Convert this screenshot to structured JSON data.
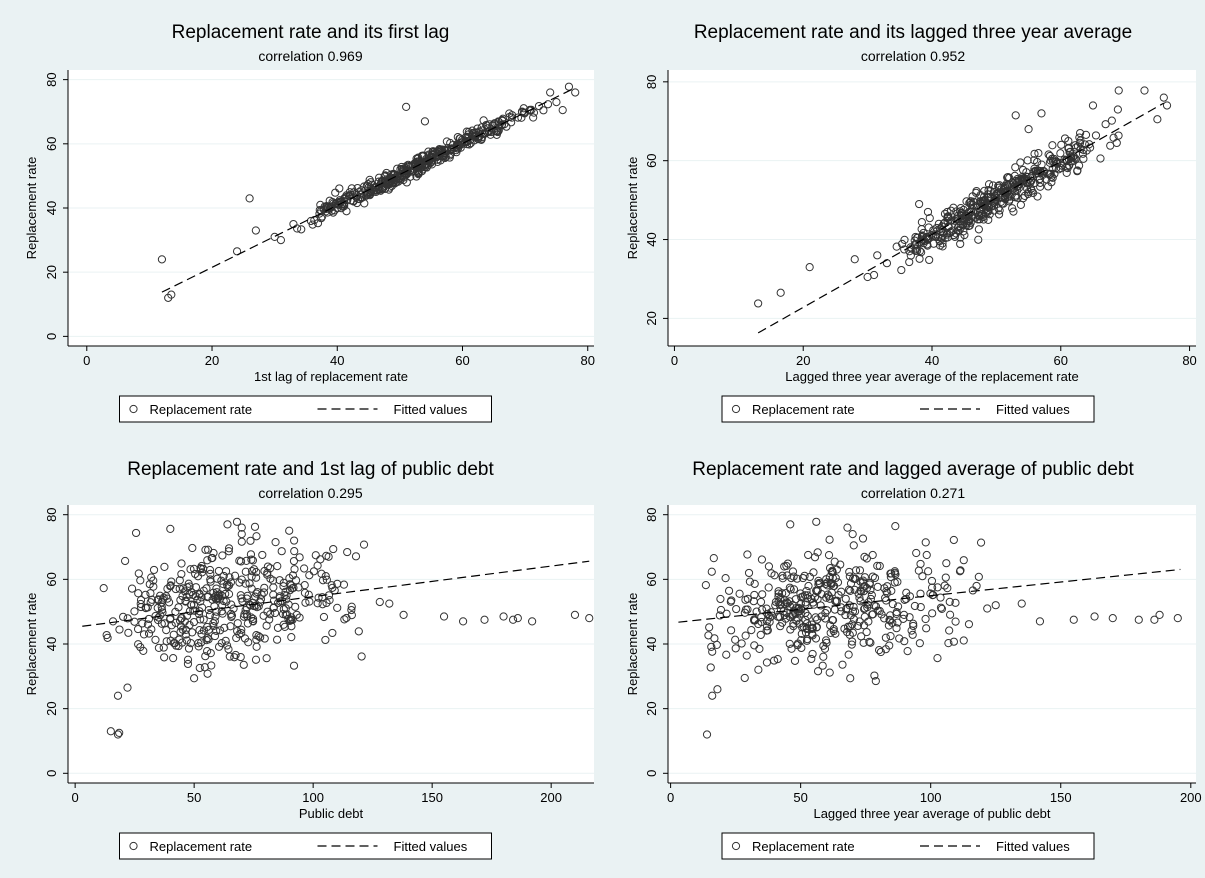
{
  "chart_data": [
    {
      "type": "scatter",
      "title": "Replacement rate and its first lag",
      "subtitle": "correlation 0.969",
      "xlabel": "1st lag of replacement rate",
      "ylabel": "Replacement rate",
      "xlim": [
        -3,
        81
      ],
      "ylim": [
        -3,
        83
      ],
      "xticks": [
        0,
        20,
        40,
        60,
        80
      ],
      "yticks": [
        0,
        20,
        40,
        60,
        80
      ],
      "grid": true,
      "legend_position": "bottom",
      "legend": {
        "scatter": "Replacement rate",
        "line": "Fitted values"
      },
      "fit": {
        "slope": 0.965,
        "intercept": 2.2,
        "x_range": [
          12,
          78
        ]
      },
      "pattern": {
        "kind": "linear",
        "count": 420,
        "x_range": [
          33,
          74
        ],
        "x_mode": 52,
        "slope": 0.965,
        "intercept": 2.2,
        "noise": 1.4,
        "seed": 11
      },
      "outliers": [
        [
          12,
          24
        ],
        [
          13,
          12
        ],
        [
          13.5,
          13
        ],
        [
          24,
          26.5
        ],
        [
          26,
          43
        ],
        [
          27,
          33
        ],
        [
          30,
          31
        ],
        [
          31,
          30
        ],
        [
          33,
          35
        ],
        [
          51,
          71.5
        ],
        [
          54,
          67
        ],
        [
          74,
          76
        ],
        [
          75,
          73
        ],
        [
          76,
          70.5
        ],
        [
          77,
          77.8
        ],
        [
          78,
          76
        ]
      ]
    },
    {
      "type": "scatter",
      "title": "Replacement rate and its lagged three year average",
      "subtitle": "correlation 0.952",
      "xlabel": "Lagged three year average of the replacement rate",
      "ylabel": "Replacement rate",
      "xlim": [
        -1,
        81
      ],
      "ylim": [
        13,
        83
      ],
      "xticks": [
        0,
        20,
        40,
        60,
        80
      ],
      "yticks": [
        20,
        40,
        60,
        80
      ],
      "grid": true,
      "legend_position": "bottom",
      "legend": {
        "scatter": "Replacement rate",
        "line": "Fitted values"
      },
      "fit": {
        "slope": 0.925,
        "intercept": 4.3,
        "x_range": [
          13,
          76
        ]
      },
      "pattern": {
        "kind": "linear",
        "count": 420,
        "x_range": [
          33,
          70
        ],
        "x_mode": 47,
        "slope": 0.925,
        "intercept": 4.3,
        "noise": 2.2,
        "seed": 23
      },
      "outliers": [
        [
          13,
          23.8
        ],
        [
          16.5,
          26.5
        ],
        [
          21,
          33
        ],
        [
          28,
          35
        ],
        [
          30,
          30.5
        ],
        [
          31,
          31
        ],
        [
          31.5,
          36
        ],
        [
          33,
          34
        ],
        [
          38,
          49
        ],
        [
          53,
          71.5
        ],
        [
          55,
          68
        ],
        [
          57,
          72
        ],
        [
          63,
          67
        ],
        [
          65,
          74
        ],
        [
          69,
          77.8
        ],
        [
          73,
          77.8
        ],
        [
          75,
          70.5
        ],
        [
          76,
          76
        ],
        [
          76.5,
          74
        ]
      ]
    },
    {
      "type": "scatter",
      "title": "Replacement rate and 1st lag of public debt",
      "subtitle": "correlation 0.295",
      "xlabel": "Public debt",
      "ylabel": "Replacement rate",
      "xlim": [
        -3,
        218
      ],
      "ylim": [
        -3,
        83
      ],
      "xticks": [
        0,
        50,
        100,
        150,
        200
      ],
      "yticks": [
        0,
        20,
        40,
        60,
        80
      ],
      "grid": true,
      "legend_position": "bottom",
      "legend": {
        "scatter": "Replacement rate",
        "line": "Fitted values"
      },
      "fit": {
        "slope": 0.0945,
        "intercept": 45.2,
        "x_range": [
          3,
          216
        ]
      },
      "pattern": {
        "kind": "cloud",
        "count": 430,
        "x_range": [
          8,
          125
        ],
        "x_mode": 55,
        "y_center": 51,
        "slope": 0.08,
        "noise": 8.5,
        "seed": 37
      },
      "outliers": [
        [
          15,
          13
        ],
        [
          18,
          12
        ],
        [
          18.5,
          12.5
        ],
        [
          18,
          24
        ],
        [
          22,
          26.5
        ],
        [
          64,
          77
        ],
        [
          68,
          77.8
        ],
        [
          70,
          76
        ],
        [
          70,
          74
        ],
        [
          92,
          72
        ],
        [
          128,
          53
        ],
        [
          132,
          52.5
        ],
        [
          138,
          49
        ],
        [
          155,
          48.5
        ],
        [
          163,
          47
        ],
        [
          172,
          47.5
        ],
        [
          180,
          48.5
        ],
        [
          184,
          47.5
        ],
        [
          186,
          48
        ],
        [
          192,
          47
        ],
        [
          210,
          49
        ],
        [
          216,
          48
        ]
      ]
    },
    {
      "type": "scatter",
      "title": "Replacement rate and lagged average of public debt",
      "subtitle": "correlation 0.271",
      "xlabel": "Lagged three year average of public debt",
      "ylabel": "Replacement rate",
      "xlim": [
        -1,
        202
      ],
      "ylim": [
        -3,
        83
      ],
      "xticks": [
        0,
        50,
        100,
        150,
        200
      ],
      "yticks": [
        0,
        20,
        40,
        60,
        80
      ],
      "grid": true,
      "legend_position": "bottom",
      "legend": {
        "scatter": "Replacement rate",
        "line": "Fitted values"
      },
      "fit": {
        "slope": 0.0845,
        "intercept": 46.5,
        "x_range": [
          3,
          196
        ]
      },
      "pattern": {
        "kind": "cloud",
        "count": 430,
        "x_range": [
          8,
          122
        ],
        "x_mode": 55,
        "y_center": 51,
        "slope": 0.07,
        "noise": 8.5,
        "seed": 53
      },
      "outliers": [
        [
          14,
          12
        ],
        [
          16,
          24
        ],
        [
          18,
          26
        ],
        [
          46,
          77
        ],
        [
          56,
          77.8
        ],
        [
          68,
          76
        ],
        [
          70,
          74
        ],
        [
          106,
          65
        ],
        [
          125,
          52
        ],
        [
          135,
          52.5
        ],
        [
          142,
          47
        ],
        [
          155,
          47.5
        ],
        [
          163,
          48.5
        ],
        [
          170,
          48
        ],
        [
          180,
          47.5
        ],
        [
          186,
          47.5
        ],
        [
          188,
          49
        ],
        [
          195,
          48
        ]
      ]
    }
  ]
}
